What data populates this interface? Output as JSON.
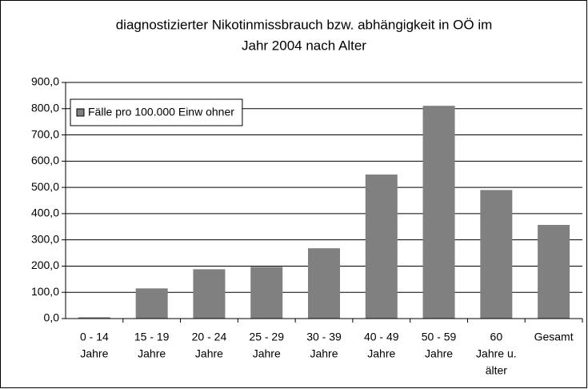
{
  "chart_data": {
    "type": "bar",
    "title": [
      "diagnostizierter Nikotinmissbrauch bzw. abhängigkeit in OÖ im",
      "Jahr 2004 nach Alter"
    ],
    "categories": [
      [
        "0 - 14",
        "Jahre"
      ],
      [
        "15 - 19",
        "Jahre"
      ],
      [
        "20 - 24",
        "Jahre"
      ],
      [
        "25 - 29",
        "Jahre"
      ],
      [
        "30 - 39",
        "Jahre"
      ],
      [
        "40 - 49",
        "Jahre"
      ],
      [
        "50 - 59",
        "Jahre"
      ],
      [
        "60",
        "Jahre u.",
        "älter"
      ],
      [
        "Gesamt"
      ]
    ],
    "series": [
      {
        "name": "Fälle pro 100.000 Einw ohner",
        "color": "#808080",
        "values": [
          5,
          115,
          188,
          197,
          268,
          549,
          811,
          490,
          357
        ]
      }
    ],
    "ylim": [
      0,
      900
    ],
    "yticks": [
      {
        "value": 0,
        "label": "0,0"
      },
      {
        "value": 100,
        "label": "100,0"
      },
      {
        "value": 200,
        "label": "200,0"
      },
      {
        "value": 300,
        "label": "300,0"
      },
      {
        "value": 400,
        "label": "400,0"
      },
      {
        "value": 500,
        "label": "500,0"
      },
      {
        "value": 600,
        "label": "600,0"
      },
      {
        "value": 700,
        "label": "700,0"
      },
      {
        "value": 800,
        "label": "800,0"
      },
      {
        "value": 900,
        "label": "900,0"
      }
    ],
    "grid": true,
    "legend": "top-left"
  }
}
